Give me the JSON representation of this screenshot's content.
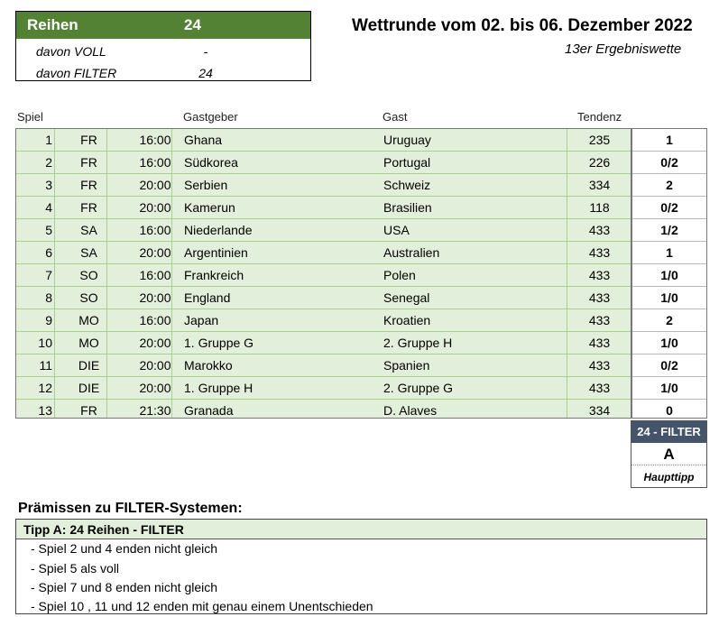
{
  "summary": {
    "header_label": "Reihen",
    "header_value": "24",
    "rows": [
      {
        "label": "davon VOLL",
        "value": "-"
      },
      {
        "label": "davon FILTER",
        "value": "24"
      }
    ]
  },
  "title": "Wettrunde vom 02. bis 06. Dezember 2022",
  "subtitle": "13er Ergebniswette",
  "columns": {
    "spiel": "Spiel",
    "gastgeber": "Gastgeber",
    "gast": "Gast",
    "tendenz": "Tendenz"
  },
  "matches": [
    {
      "num": "1",
      "day": "FR",
      "time": "16:00",
      "home": "Ghana",
      "away": "Uruguay",
      "tendency": "235",
      "tip": "1"
    },
    {
      "num": "2",
      "day": "FR",
      "time": "16:00",
      "home": "Südkorea",
      "away": "Portugal",
      "tendency": "226",
      "tip": "0/2"
    },
    {
      "num": "3",
      "day": "FR",
      "time": "20:00",
      "home": "Serbien",
      "away": "Schweiz",
      "tendency": "334",
      "tip": "2"
    },
    {
      "num": "4",
      "day": "FR",
      "time": "20:00",
      "home": "Kamerun",
      "away": "Brasilien",
      "tendency": "118",
      "tip": "0/2"
    },
    {
      "num": "5",
      "day": "SA",
      "time": "16:00",
      "home": "Niederlande",
      "away": "USA",
      "tendency": "433",
      "tip": "1/2"
    },
    {
      "num": "6",
      "day": "SA",
      "time": "20:00",
      "home": "Argentinien",
      "away": "Australien",
      "tendency": "433",
      "tip": "1"
    },
    {
      "num": "7",
      "day": "SO",
      "time": "16:00",
      "home": "Frankreich",
      "away": "Polen",
      "tendency": "433",
      "tip": "1/0"
    },
    {
      "num": "8",
      "day": "SO",
      "time": "20:00",
      "home": "England",
      "away": "Senegal",
      "tendency": "433",
      "tip": "1/0"
    },
    {
      "num": "9",
      "day": "MO",
      "time": "16:00",
      "home": "Japan",
      "away": "Kroatien",
      "tendency": "433",
      "tip": "2"
    },
    {
      "num": "10",
      "day": "MO",
      "time": "20:00",
      "home": "1. Gruppe G",
      "away": "2. Gruppe H",
      "tendency": "433",
      "tip": "1/0"
    },
    {
      "num": "11",
      "day": "DIE",
      "time": "20:00",
      "home": "Marokko",
      "away": "Spanien",
      "tendency": "433",
      "tip": "0/2"
    },
    {
      "num": "12",
      "day": "DIE",
      "time": "20:00",
      "home": "1. Gruppe H",
      "away": "2. Gruppe G",
      "tendency": "433",
      "tip": "1/0"
    },
    {
      "num": "13",
      "day": "FR",
      "time": "21:30",
      "home": "Granada",
      "away": "D. Alaves",
      "tendency": "334",
      "tip": "0"
    }
  ],
  "filter": {
    "header": "24 - FILTER",
    "letter": "A",
    "label": "Haupttipp"
  },
  "premises": {
    "title": "Prämissen zu FILTER-Systemen:",
    "box_header": "Tipp A: 24 Reihen - FILTER",
    "lines": [
      "- Spiel 2 und 4 enden nicht gleich",
      "- Spiel 5 als voll",
      "- Spiel 7 und 8 enden nicht gleich",
      "- Spiel 10 , 11 und 12 enden mit genau einem Unentschieden"
    ]
  },
  "colors": {
    "header_green": "#548235",
    "row_green": "#e2efda",
    "filter_header": "#44546a"
  }
}
